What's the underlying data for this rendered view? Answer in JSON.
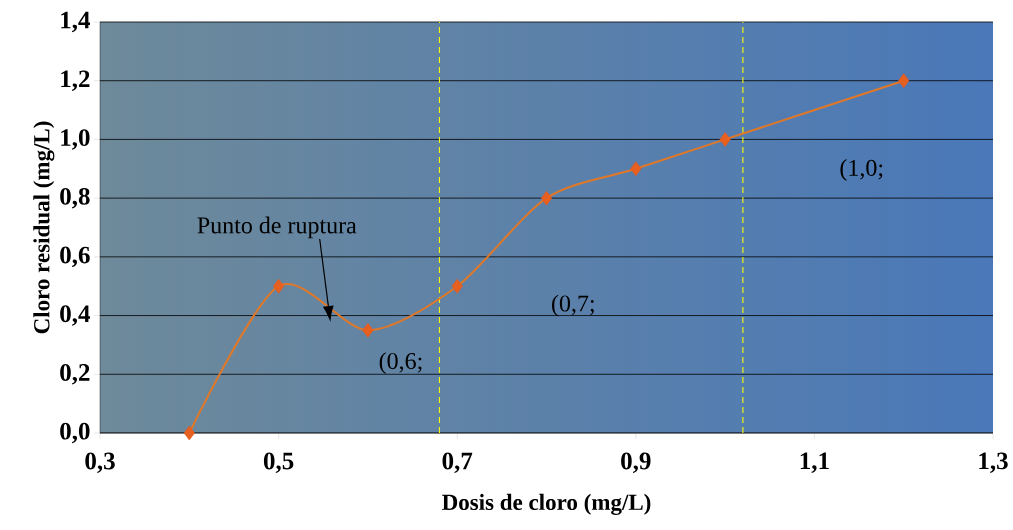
{
  "chart_data": {
    "type": "line",
    "xlabel": "Dosis de cloro (mg/L)",
    "ylabel": "Cloro residual (mg/L)",
    "x": [
      0.4,
      0.5,
      0.6,
      0.7,
      0.8,
      0.9,
      1.0,
      1.2
    ],
    "series": [
      {
        "color": "#e07828",
        "values": [
          0,
          0.5,
          0.35,
          0.5,
          0.8,
          0.9,
          1.0,
          1.2
        ]
      }
    ],
    "xlim": [
      0.3,
      1.3
    ],
    "ylim": [
      0,
      1.4
    ],
    "xticks": [
      {
        "value": 0.3,
        "label": "0,3"
      },
      {
        "value": 0.5,
        "label": "0,5"
      },
      {
        "value": 0.7,
        "label": "0,7"
      },
      {
        "value": 0.9,
        "label": "0,9"
      },
      {
        "value": 1.1,
        "label": "1,1"
      },
      {
        "value": 1.3,
        "label": "1,3"
      }
    ],
    "yticks": [
      {
        "value": 0,
        "label": "0,0"
      },
      {
        "value": 0.2,
        "label": "0,2"
      },
      {
        "value": 0.4,
        "label": "0,4"
      },
      {
        "value": 0.6,
        "label": "0,6"
      },
      {
        "value": 0.8,
        "label": "0,8"
      },
      {
        "value": 1.0,
        "label": "1,0"
      },
      {
        "value": 1.2,
        "label": "1,2"
      },
      {
        "value": 1.4,
        "label": "1,4"
      }
    ],
    "grid": "y",
    "marker": "diamond",
    "line_style": "solid",
    "ref_lines": [
      {
        "axis": "x",
        "value": 0.68,
        "color": "#ffff00",
        "line_style": "dashed"
      },
      {
        "axis": "x",
        "value": 1.02,
        "color": "#ffff00",
        "line_style": "dashed"
      }
    ],
    "annotations": [
      "Punto de ruptura",
      "(0,6;",
      "(0,7;",
      "(1,0;"
    ]
  }
}
